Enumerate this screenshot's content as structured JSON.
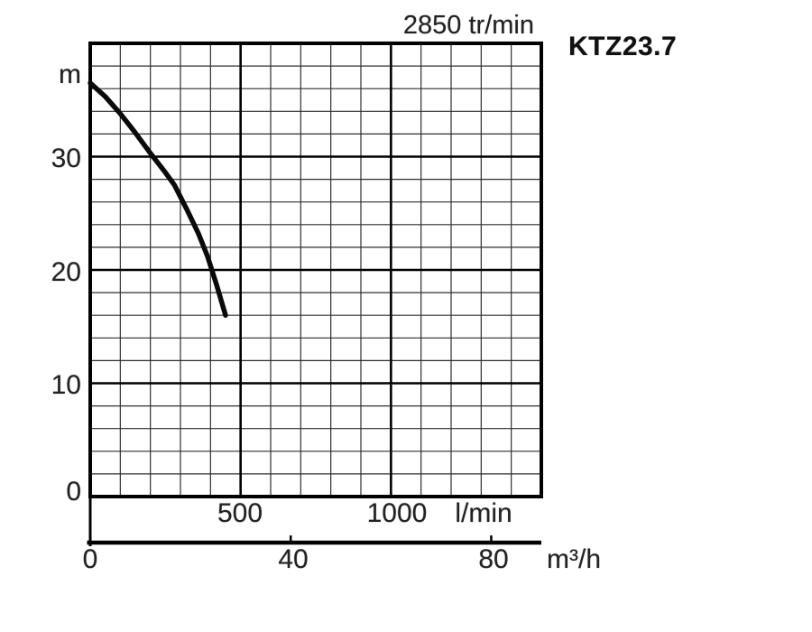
{
  "header": {
    "rpm_title": "2850 tr/min",
    "model": "KTZ23.7"
  },
  "y_axis_labels": {
    "unit": "m",
    "tick_30": "30",
    "tick_20": "20",
    "tick_10": "10",
    "tick_0": "0"
  },
  "x_axis_lmin_labels": {
    "tick_500": "500",
    "tick_1000": "1000",
    "unit": "l/min"
  },
  "x_axis_m3h_labels": {
    "tick_0": "0",
    "tick_40": "40",
    "tick_80": "80",
    "unit": "m³/h"
  },
  "chart_data": {
    "type": "line",
    "title": "2850 tr/min",
    "model": "KTZ23.7",
    "x_axis": {
      "label": "l/min",
      "range": [
        0,
        1500
      ],
      "minor_step": 100,
      "major_step": 500,
      "ticks": [
        500,
        1000
      ]
    },
    "x_axis_secondary": {
      "label": "m³/h",
      "range": [
        0,
        90
      ],
      "ticks": [
        0,
        40,
        80
      ]
    },
    "y_axis": {
      "label": "m",
      "range": [
        0,
        40
      ],
      "minor_step": 2,
      "major_step": 10,
      "ticks": [
        0,
        10,
        20,
        30
      ]
    },
    "grid": true,
    "legend": false,
    "series": [
      {
        "name": "KTZ23.7 head curve",
        "points_lmin_m": [
          [
            0,
            36.5
          ],
          [
            50,
            35.3
          ],
          [
            100,
            33.8
          ],
          [
            150,
            32.1
          ],
          [
            200,
            30.3
          ],
          [
            250,
            28.6
          ],
          [
            280,
            27.5
          ],
          [
            320,
            25.4
          ],
          [
            360,
            23.2
          ],
          [
            390,
            21.2
          ],
          [
            420,
            18.7
          ],
          [
            450,
            16
          ]
        ]
      }
    ]
  }
}
